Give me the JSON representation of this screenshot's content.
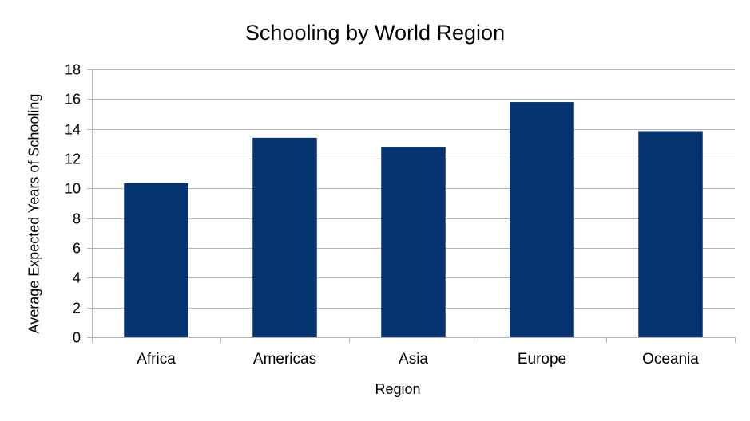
{
  "chart_data": {
    "type": "bar",
    "title": "Schooling by World Region",
    "xlabel": "Region",
    "ylabel": "Average Expected Years of Schooling",
    "categories": [
      "Africa",
      "Americas",
      "Asia",
      "Europe",
      "Oceania"
    ],
    "values": [
      10.35,
      13.4,
      12.8,
      15.8,
      13.85
    ],
    "ylim": [
      0,
      18
    ],
    "yticks": [
      "0",
      "2",
      "4",
      "6",
      "8",
      "10",
      "12",
      "14",
      "16",
      "18"
    ],
    "grid": true,
    "legend": "none",
    "colors": {
      "bar": "#04336f",
      "grid": "#b3b3b3",
      "axis": "#b3b3b3",
      "text": "#000000"
    }
  }
}
